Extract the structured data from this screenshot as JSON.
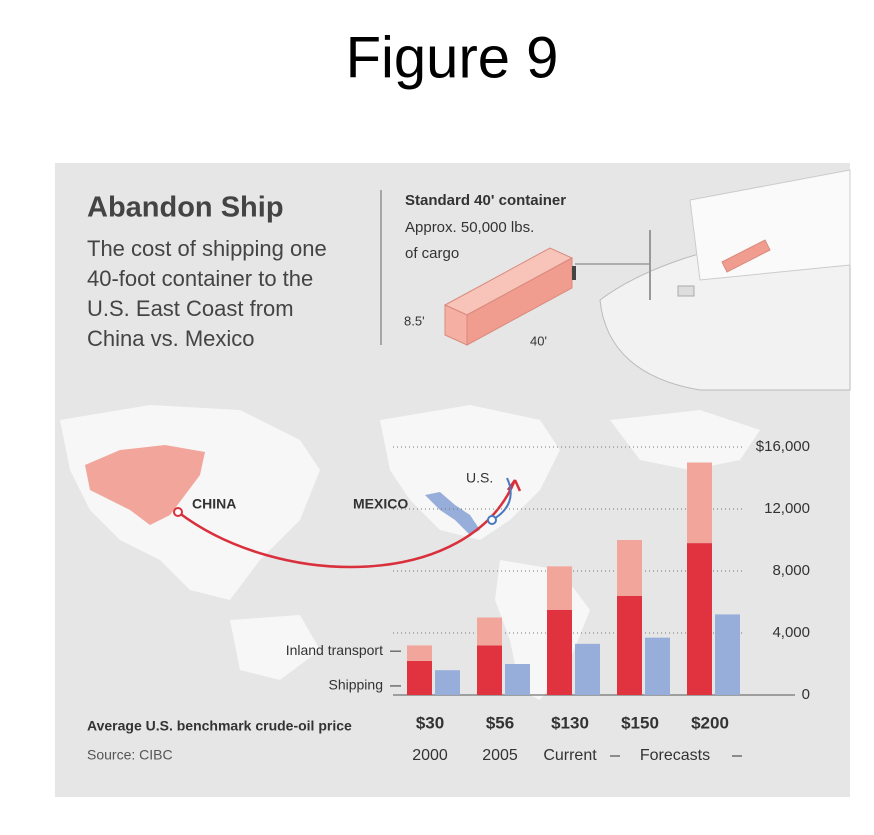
{
  "figure_label": "Figure 9",
  "chart_data": {
    "type": "bar",
    "title": "Abandon Ship",
    "subtitle": [
      "The cost of shipping one",
      "40-foot container to the",
      "U.S. East Coast from",
      "China vs. Mexico"
    ],
    "container": {
      "title": "Standard 40' container",
      "lines": [
        "Approx. 50,000 lbs.",
        "of cargo"
      ],
      "height": "8.5'",
      "length": "40'"
    },
    "map_labels": {
      "china": "CHINA",
      "mexico": "MEXICO",
      "us": "U.S."
    },
    "x_label": "Average U.S. benchmark crude-oil price",
    "categories": [
      "$30",
      "$56",
      "$130",
      "$150",
      "$200"
    ],
    "periods": [
      "2000",
      "2005",
      "Current",
      null,
      null
    ],
    "forecast_label": "Forecasts",
    "source": "Source: CIBC",
    "series": [
      {
        "name": "Shipping",
        "color": "#e0323f",
        "values": [
          2200,
          3200,
          5500,
          6400,
          9800
        ]
      },
      {
        "name": "Inland transport",
        "color": "#f2a59b",
        "values": [
          1000,
          1800,
          2800,
          3600,
          5200
        ]
      },
      {
        "color": "#97aedb",
        "values": [
          1600,
          2000,
          3300,
          3700,
          5200
        ]
      }
    ],
    "ylim": [
      0,
      16000
    ],
    "yticks": [
      0,
      {
        "value": 4000,
        "label": "4,000"
      },
      {
        "value": 8000,
        "label": "8,000"
      },
      {
        "value": 12000,
        "label": "12,000"
      },
      {
        "value": 16000,
        "label": "$16,000"
      }
    ],
    "grid": true
  }
}
